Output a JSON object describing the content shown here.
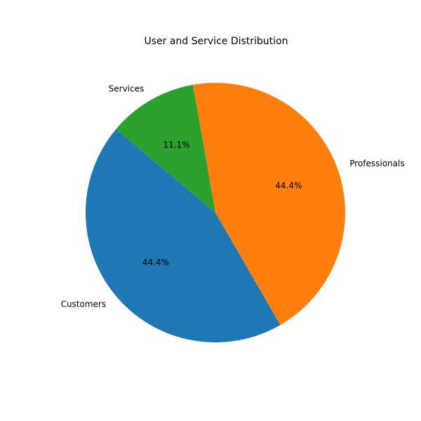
{
  "chart_data": {
    "type": "pie",
    "title": "User and Service Distribution",
    "categories": [
      "Customers",
      "Professionals",
      "Services"
    ],
    "values": [
      4,
      4,
      1
    ],
    "percent_labels": [
      "44.4%",
      "44.4%",
      "11.1%"
    ],
    "colors": [
      "#1f77b4",
      "#ff7f0e",
      "#2ca02c"
    ],
    "start_angle_deg": 140,
    "direction": "counterclockwise",
    "legend": "none"
  }
}
